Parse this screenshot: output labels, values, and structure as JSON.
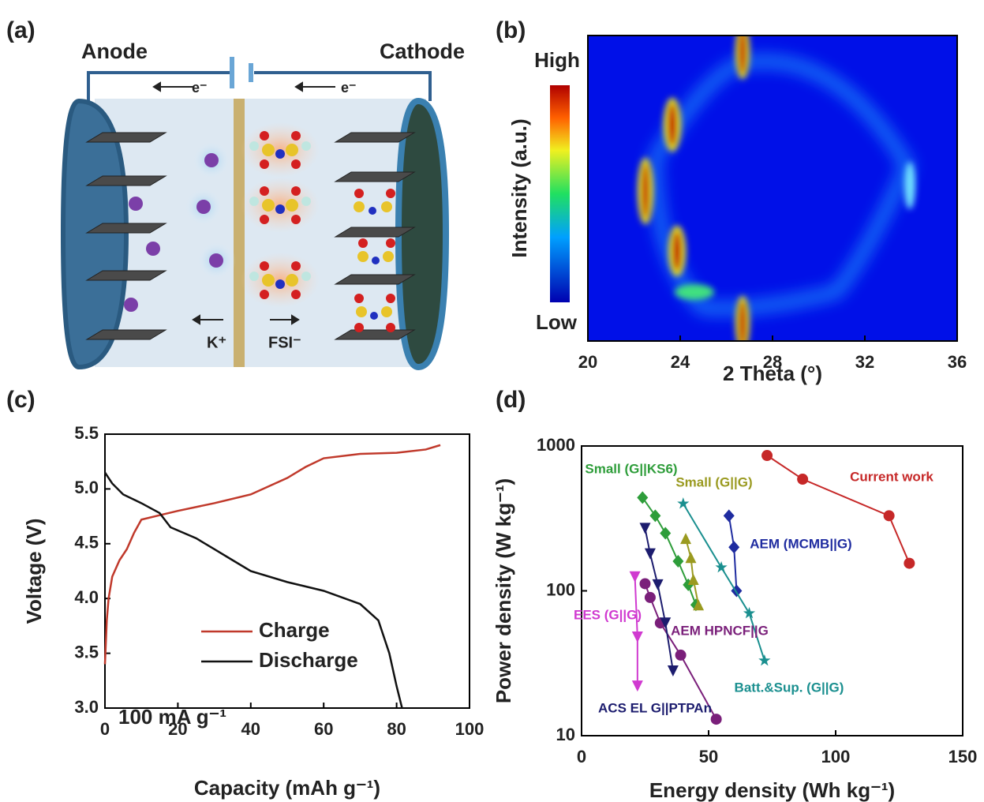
{
  "diagram": {
    "label": "(a)",
    "anode": "Anode",
    "cathode": "Cathode",
    "electron_left": "e⁻",
    "electron_right": "e⁻",
    "cation": "K⁺",
    "anion": "FSI⁻"
  },
  "chart_data": [
    {
      "type": "heatmap",
      "label": "(b)",
      "xlabel": "2 Theta (°)",
      "ylabel": "Intensity (a.u.)",
      "colorbar_high": "High",
      "colorbar_low": "Low",
      "xlim": [
        20,
        36
      ],
      "xticks": [
        20,
        24,
        28,
        32,
        36
      ]
    },
    {
      "type": "line",
      "label": "(c)",
      "xlabel": "Capacity (mAh g⁻¹)",
      "ylabel": "Voltage (V)",
      "annotation": "100 mA g⁻¹",
      "xlim": [
        0,
        100
      ],
      "xticks": [
        0,
        20,
        40,
        60,
        80,
        100
      ],
      "ylim": [
        3.0,
        5.5
      ],
      "yticks": [
        {
          "value": 3,
          "label": "3.0"
        },
        3.5,
        {
          "value": 4,
          "label": "4.0"
        },
        4.5,
        {
          "value": 5,
          "label": "5.0"
        },
        5.5
      ],
      "series": [
        {
          "name": "Charge",
          "color": "#c0392b",
          "x": [
            0,
            0.5,
            1,
            2,
            4,
            6,
            8,
            10,
            15,
            20,
            30,
            40,
            50,
            55,
            60,
            70,
            80,
            88,
            92
          ],
          "values": [
            3.4,
            3.8,
            4.0,
            4.2,
            4.35,
            4.45,
            4.6,
            4.72,
            4.76,
            4.8,
            4.87,
            4.95,
            5.1,
            5.2,
            5.28,
            5.32,
            5.33,
            5.36,
            5.4
          ]
        },
        {
          "name": "Discharge",
          "color": "#111111",
          "x": [
            0,
            2,
            5,
            10,
            15,
            18,
            25,
            30,
            35,
            40,
            50,
            60,
            70,
            75,
            78,
            80,
            81.5
          ],
          "values": [
            5.15,
            5.05,
            4.95,
            4.87,
            4.78,
            4.65,
            4.55,
            4.45,
            4.35,
            4.25,
            4.15,
            4.07,
            3.95,
            3.8,
            3.5,
            3.2,
            3.0
          ]
        }
      ]
    },
    {
      "type": "line",
      "label": "(d)",
      "xlabel": "Energy density (Wh kg⁻¹)",
      "ylabel": "Power density (W kg⁻¹)",
      "yscale": "log",
      "xlim": [
        0,
        150
      ],
      "xticks": [
        0,
        50,
        100,
        150
      ],
      "ylim": [
        10,
        1000
      ],
      "yticks": [
        10,
        100,
        1000
      ],
      "series": [
        {
          "name": "Current work",
          "color": "#c62828",
          "marker": "circle",
          "x": [
            73,
            87,
            121,
            129
          ],
          "values": [
            860,
            590,
            330,
            155
          ]
        },
        {
          "name": "Small (G||KS6)",
          "color": "#2e9d3a",
          "marker": "diamond",
          "x": [
            24,
            29,
            33,
            38,
            42,
            45
          ],
          "values": [
            440,
            330,
            250,
            160,
            110,
            80
          ]
        },
        {
          "name": "Small (G||G)",
          "color": "#9a9a20",
          "marker": "triangle-up",
          "x": [
            41,
            43,
            44,
            46
          ],
          "values": [
            230,
            170,
            120,
            80
          ]
        },
        {
          "name": "AEM (MCMB||G)",
          "color": "#1f2ca0",
          "marker": "diamond",
          "x": [
            58,
            60,
            61
          ],
          "values": [
            330,
            200,
            100
          ]
        },
        {
          "name": "Batt.&Sup. (G||G)",
          "color": "#1a8f8f",
          "marker": "star",
          "x": [
            40,
            55,
            66,
            72
          ],
          "values": [
            400,
            145,
            70,
            33
          ]
        },
        {
          "name": "AEM HPNCF||G",
          "color": "#7a1f7a",
          "marker": "circle",
          "x": [
            25,
            27,
            31,
            39,
            53
          ],
          "values": [
            112,
            90,
            60,
            36,
            13
          ]
        },
        {
          "name": "ACS EL G||PTPAn",
          "color": "#1c1c6e",
          "marker": "triangle-down",
          "x": [
            25,
            27,
            30,
            33,
            36
          ],
          "values": [
            270,
            180,
            110,
            60,
            28
          ]
        },
        {
          "name": "EES (G||G)",
          "color": "#d03ad0",
          "marker": "triangle-down",
          "x": [
            21,
            22,
            22
          ],
          "values": [
            125,
            48,
            22
          ]
        }
      ]
    }
  ]
}
